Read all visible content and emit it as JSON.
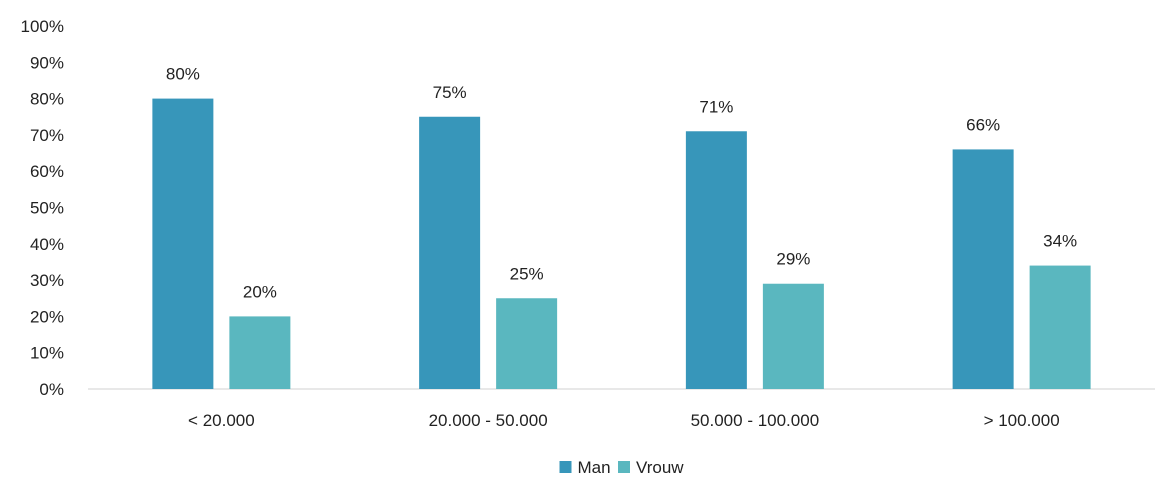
{
  "chart_data": {
    "type": "bar",
    "categories": [
      "< 20.000",
      "20.000 - 50.000",
      "50.000 - 100.000",
      "> 100.000"
    ],
    "series": [
      {
        "name": "Man",
        "color": "#3796BA",
        "values": [
          80,
          75,
          71,
          66
        ],
        "labels": [
          "80%",
          "75%",
          "71%",
          "66%"
        ]
      },
      {
        "name": "Vrouw",
        "color": "#5AB7BF",
        "values": [
          20,
          25,
          29,
          34
        ],
        "labels": [
          "20%",
          "25%",
          "29%",
          "34%"
        ]
      }
    ],
    "ylim": [
      0,
      100
    ],
    "yticks": [
      "0%",
      "10%",
      "20%",
      "30%",
      "40%",
      "50%",
      "60%",
      "70%",
      "80%",
      "90%",
      "100%"
    ],
    "grid": false,
    "legend_position": "bottom-center",
    "axis_color": "#d9d9d9"
  }
}
